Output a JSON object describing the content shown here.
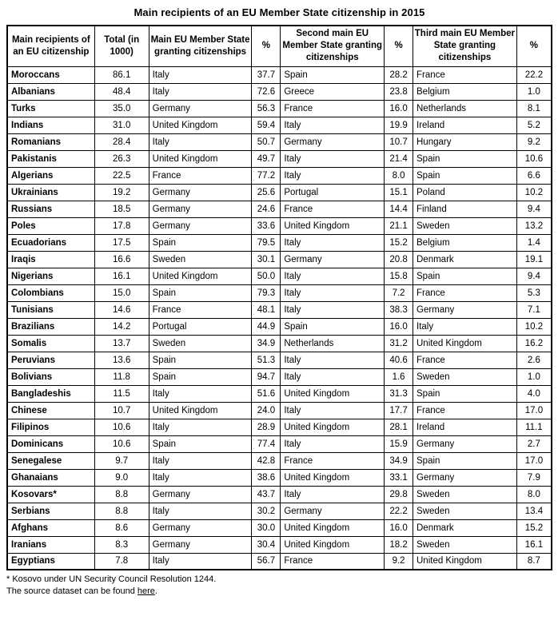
{
  "title": "Main recipients of an EU Member State citizenship in 2015",
  "table": {
    "headers": [
      "Main recipients of an EU citizenship",
      "Total (in 1000)",
      "Main EU Member State granting citizenships",
      "%",
      "Second main EU Member State granting citizenships",
      "%",
      "Third main EU Member State granting citizenships",
      "%"
    ],
    "rows": [
      [
        "Moroccans",
        "86.1",
        "Italy",
        "37.7",
        "Spain",
        "28.2",
        "France",
        "22.2"
      ],
      [
        "Albanians",
        "48.4",
        "Italy",
        "72.6",
        "Greece",
        "23.8",
        "Belgium",
        "1.0"
      ],
      [
        "Turks",
        "35.0",
        "Germany",
        "56.3",
        "France",
        "16.0",
        "Netherlands",
        "8.1"
      ],
      [
        "Indians",
        "31.0",
        "United Kingdom",
        "59.4",
        "Italy",
        "19.9",
        "Ireland",
        "5.2"
      ],
      [
        "Romanians",
        "28.4",
        "Italy",
        "50.7",
        "Germany",
        "10.7",
        "Hungary",
        "9.2"
      ],
      [
        "Pakistanis",
        "26.3",
        "United Kingdom",
        "49.7",
        "Italy",
        "21.4",
        "Spain",
        "10.6"
      ],
      [
        "Algerians",
        "22.5",
        "France",
        "77.2",
        "Italy",
        "8.0",
        "Spain",
        "6.6"
      ],
      [
        "Ukrainians",
        "19.2",
        "Germany",
        "25.6",
        "Portugal",
        "15.1",
        "Poland",
        "10.2"
      ],
      [
        "Russians",
        "18.5",
        "Germany",
        "24.6",
        "France",
        "14.4",
        "Finland",
        "9.4"
      ],
      [
        "Poles",
        "17.8",
        "Germany",
        "33.6",
        "United Kingdom",
        "21.1",
        "Sweden",
        "13.2"
      ],
      [
        "Ecuadorians",
        "17.5",
        "Spain",
        "79.5",
        "Italy",
        "15.2",
        "Belgium",
        "1.4"
      ],
      [
        "Iraqis",
        "16.6",
        "Sweden",
        "30.1",
        "Germany",
        "20.8",
        "Denmark",
        "19.1"
      ],
      [
        "Nigerians",
        "16.1",
        "United Kingdom",
        "50.0",
        "Italy",
        "15.8",
        "Spain",
        "9.4"
      ],
      [
        "Colombians",
        "15.0",
        "Spain",
        "79.3",
        "Italy",
        "7.2",
        "France",
        "5.3"
      ],
      [
        "Tunisians",
        "14.6",
        "France",
        "48.1",
        "Italy",
        "38.3",
        "Germany",
        "7.1"
      ],
      [
        "Brazilians",
        "14.2",
        "Portugal",
        "44.9",
        "Spain",
        "16.0",
        "Italy",
        "10.2"
      ],
      [
        "Somalis",
        "13.7",
        "Sweden",
        "34.9",
        "Netherlands",
        "31.2",
        "United Kingdom",
        "16.2"
      ],
      [
        "Peruvians",
        "13.6",
        "Spain",
        "51.3",
        "Italy",
        "40.6",
        "France",
        "2.6"
      ],
      [
        "Bolivians",
        "11.8",
        "Spain",
        "94.7",
        "Italy",
        "1.6",
        "Sweden",
        "1.0"
      ],
      [
        "Bangladeshis",
        "11.5",
        "Italy",
        "51.6",
        "United Kingdom",
        "31.3",
        "Spain",
        "4.0"
      ],
      [
        "Chinese",
        "10.7",
        "United Kingdom",
        "24.0",
        "Italy",
        "17.7",
        "France",
        "17.0"
      ],
      [
        "Filipinos",
        "10.6",
        "Italy",
        "28.9",
        "United Kingdom",
        "28.1",
        "Ireland",
        "11.1"
      ],
      [
        "Dominicans",
        "10.6",
        "Spain",
        "77.4",
        "Italy",
        "15.9",
        "Germany",
        "2.7"
      ],
      [
        "Senegalese",
        "9.7",
        "Italy",
        "42.8",
        "France",
        "34.9",
        "Spain",
        "17.0"
      ],
      [
        "Ghanaians",
        "9.0",
        "Italy",
        "38.6",
        "United Kingdom",
        "33.1",
        "Germany",
        "7.9"
      ],
      [
        "Kosovars*",
        "8.8",
        "Germany",
        "43.7",
        "Italy",
        "29.8",
        "Sweden",
        "8.0"
      ],
      [
        "Serbians",
        "8.8",
        "Italy",
        "30.2",
        "Germany",
        "22.2",
        "Sweden",
        "13.4"
      ],
      [
        "Afghans",
        "8.6",
        "Germany",
        "30.0",
        "United Kingdom",
        "16.0",
        "Denmark",
        "15.2"
      ],
      [
        "Iranians",
        "8.3",
        "Germany",
        "30.4",
        "United Kingdom",
        "18.2",
        "Sweden",
        "16.1"
      ],
      [
        "Egyptians",
        "7.8",
        "Italy",
        "56.7",
        "France",
        "9.2",
        "United Kingdom",
        "8.7"
      ]
    ]
  },
  "footnote": "* Kosovo under UN Security Council Resolution 1244.",
  "source": {
    "prefix": "The source dataset can be found ",
    "link_label": "here",
    "suffix": "."
  }
}
